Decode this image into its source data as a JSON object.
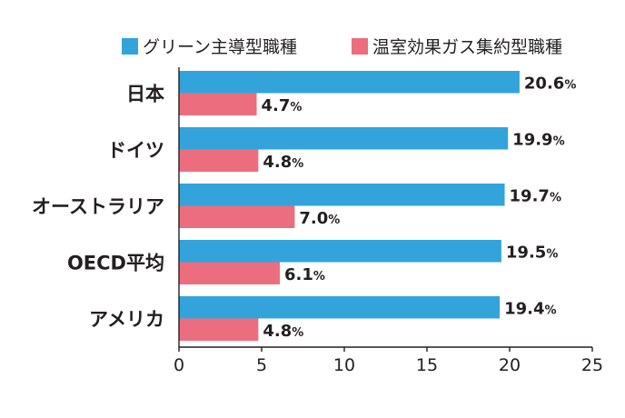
{
  "chart_data": {
    "type": "bar",
    "orientation": "horizontal",
    "categories": [
      "日本",
      "ドイツ",
      "オーストラリア",
      "OECD平均",
      "アメリカ"
    ],
    "series": [
      {
        "name": "グリーン主導型職種",
        "color": "#33a3dc",
        "values": [
          20.6,
          19.9,
          19.7,
          19.5,
          19.4
        ],
        "labels": [
          "20.6",
          "19.9",
          "19.7",
          "19.5",
          "19.4"
        ]
      },
      {
        "name": "温室効果ガス集約型職種",
        "color": "#ec6d7e",
        "values": [
          4.7,
          4.8,
          7.0,
          6.1,
          4.8
        ],
        "labels": [
          "4.7",
          "4.8",
          "7.0",
          "6.1",
          "4.8"
        ]
      }
    ],
    "value_suffix": "%",
    "xlim": [
      0,
      25
    ],
    "xticks": [
      0,
      5,
      10,
      15,
      20,
      25
    ],
    "xlabel": "",
    "ylabel": "",
    "grid": false,
    "legend": "top-right"
  }
}
